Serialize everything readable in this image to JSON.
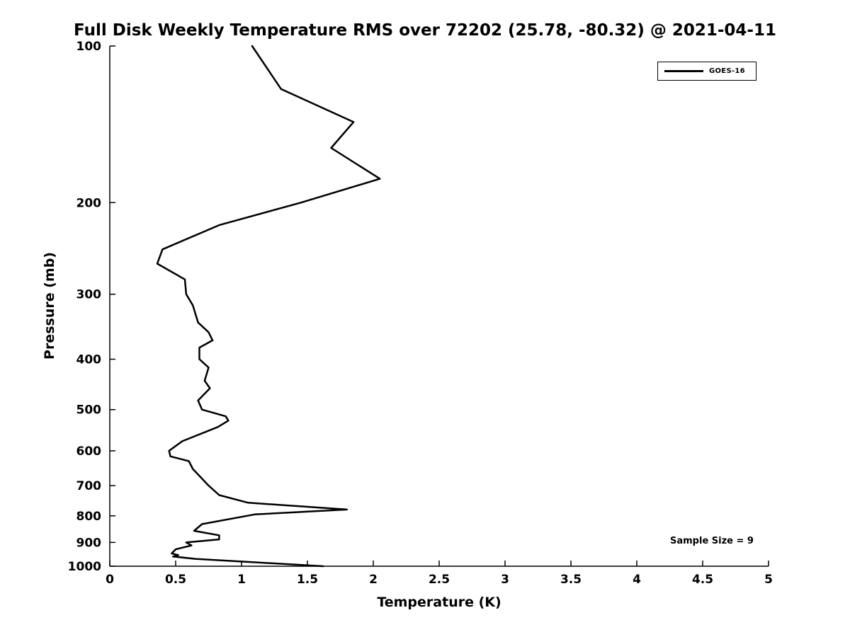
{
  "chart_data": {
    "type": "line",
    "title": "Full Disk Weekly Temperature RMS over 72202 (25.78, -80.32) @ 2021-04-11",
    "xlabel": "Temperature (K)",
    "ylabel": "Pressure (mb)",
    "xlim": [
      0,
      5
    ],
    "ylim": [
      100,
      1000
    ],
    "y_scale": "log",
    "y_orientation": "100 mb at top, 1000 mb at bottom",
    "grid": false,
    "legend_position": "top-right",
    "line_color": "#000000",
    "annotation": "Sample Size = 9",
    "x_ticks": [
      0,
      0.5,
      1,
      1.5,
      2,
      2.5,
      3,
      3.5,
      4,
      4.5,
      5
    ],
    "x_tick_labels": [
      "0",
      "0.5",
      "1",
      "1.5",
      "2",
      "2.5",
      "3",
      "3.5",
      "4",
      "4.5",
      "5"
    ],
    "y_ticks": [
      100,
      200,
      300,
      400,
      500,
      600,
      700,
      800,
      900,
      1000
    ],
    "y_tick_labels": [
      "100",
      "200",
      "300",
      "400",
      "500",
      "600",
      "700",
      "800",
      "900",
      "1000"
    ],
    "series": [
      {
        "name": "GOES-16",
        "temperature_k": [
          1.08,
          1.3,
          1.85,
          1.68,
          2.05,
          1.45,
          0.83,
          0.4,
          0.36,
          0.57,
          0.58,
          0.63,
          0.67,
          0.75,
          0.78,
          0.68,
          0.68,
          0.75,
          0.72,
          0.76,
          0.67,
          0.7,
          0.88,
          0.9,
          0.82,
          0.55,
          0.45,
          0.46,
          0.6,
          0.63,
          0.75,
          0.83,
          1.05,
          1.8,
          1.1,
          0.7,
          0.64,
          0.83,
          0.83,
          0.58,
          0.62,
          0.5,
          0.47,
          0.52,
          0.48,
          0.65,
          1.62
        ],
        "pressure_mb": [
          100,
          121,
          140,
          157,
          180,
          200,
          221,
          246,
          262,
          281,
          300,
          315,
          340,
          355,
          368,
          380,
          400,
          415,
          440,
          455,
          480,
          500,
          515,
          525,
          540,
          575,
          600,
          615,
          628,
          650,
          700,
          730,
          755,
          778,
          795,
          830,
          855,
          872,
          888,
          900,
          912,
          928,
          945,
          952,
          958,
          968,
          1000
        ]
      }
    ]
  }
}
